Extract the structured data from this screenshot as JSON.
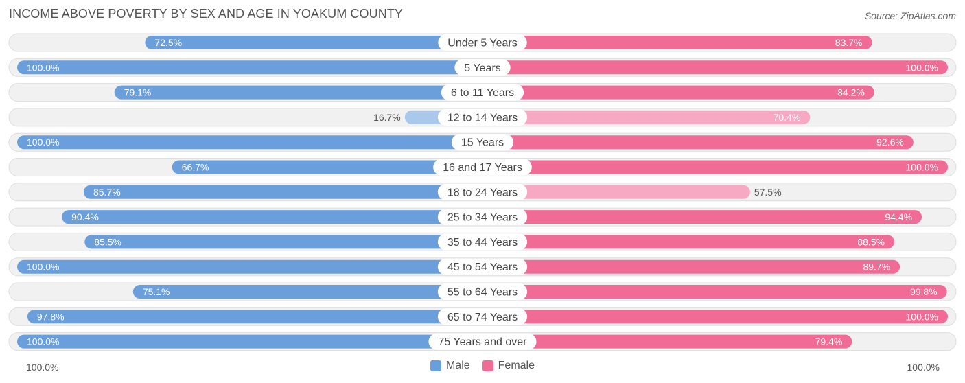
{
  "title": "INCOME ABOVE POVERTY BY SEX AND AGE IN YOAKUM COUNTY",
  "source": "Source: ZipAtlas.com",
  "axis": {
    "left_label": "100.0%",
    "right_label": "100.0%"
  },
  "legend": {
    "male": "Male",
    "female": "Female"
  },
  "colors": {
    "male": "#6a9fdc",
    "male_light": "#a9c8ec",
    "female": "#f06b96",
    "female_light": "#f7a9c3",
    "track": "#f1f1f1",
    "track_border": "#dedede"
  },
  "chart_data": {
    "type": "bar",
    "orientation": "diverging-horizontal",
    "categories": [
      "Under 5 Years",
      "5 Years",
      "6 to 11 Years",
      "12 to 14 Years",
      "15 Years",
      "16 and 17 Years",
      "18 to 24 Years",
      "25 to 34 Years",
      "35 to 44 Years",
      "45 to 54 Years",
      "55 to 64 Years",
      "65 to 74 Years",
      "75 Years and over"
    ],
    "series": [
      {
        "name": "Male",
        "values": [
          72.5,
          100.0,
          79.1,
          16.7,
          100.0,
          66.7,
          85.7,
          90.4,
          85.5,
          100.0,
          75.1,
          97.8,
          100.0
        ],
        "labels": [
          "72.5%",
          "100.0%",
          "79.1%",
          "16.7%",
          "100.0%",
          "66.7%",
          "85.7%",
          "90.4%",
          "85.5%",
          "100.0%",
          "75.1%",
          "97.8%",
          "100.0%"
        ]
      },
      {
        "name": "Female",
        "values": [
          83.7,
          100.0,
          84.2,
          70.4,
          92.6,
          100.0,
          57.5,
          94.4,
          88.5,
          89.7,
          99.8,
          100.0,
          79.4
        ],
        "labels": [
          "83.7%",
          "100.0%",
          "84.2%",
          "70.4%",
          "92.6%",
          "100.0%",
          "57.5%",
          "94.4%",
          "88.5%",
          "89.7%",
          "99.8%",
          "100.0%",
          "79.4%"
        ]
      }
    ],
    "xlim": [
      0,
      100
    ],
    "legend_position": "bottom-center",
    "grid": false
  }
}
